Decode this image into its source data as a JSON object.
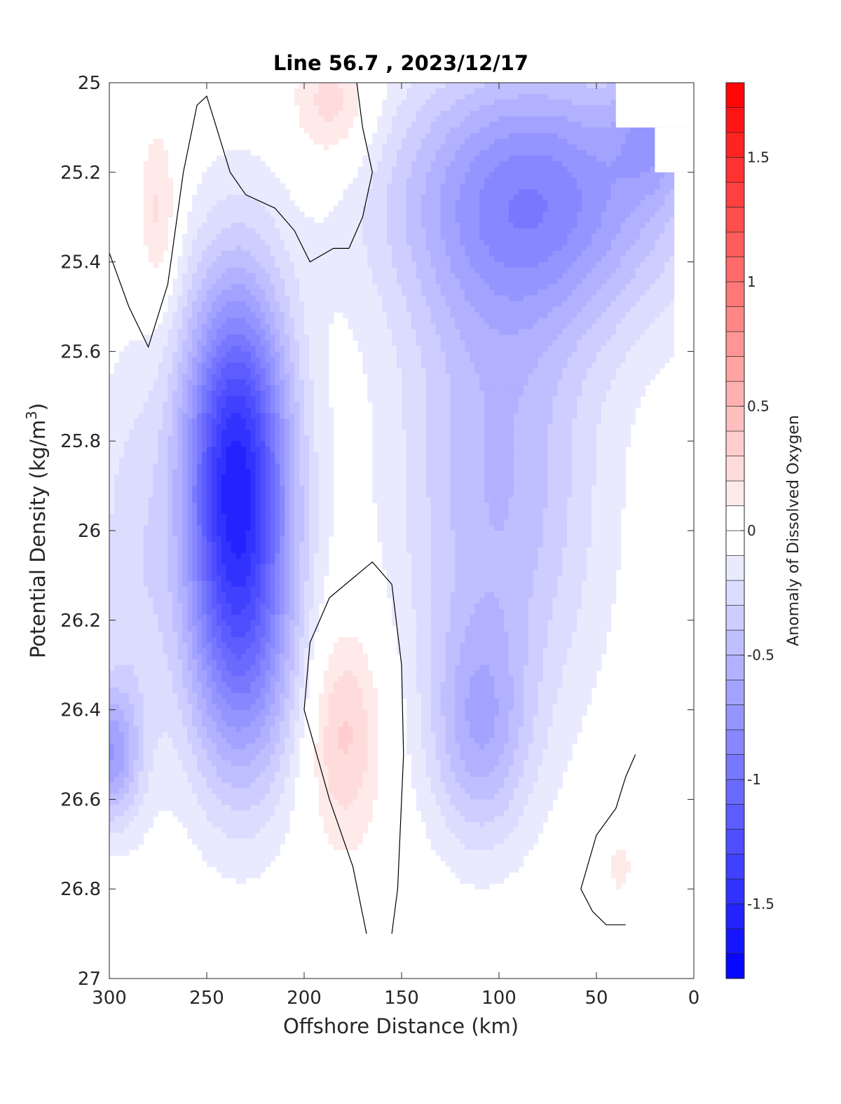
{
  "chart_data": {
    "type": "heatmap",
    "title": "Line 56.7 , 2023/12/17",
    "xlabel": "Offshore Distance (km)",
    "ylabel_main": "Potential Density (kg/m",
    "ylabel_sup": "3",
    "ylabel_close": ")",
    "xlim": [
      300,
      0
    ],
    "ylim": [
      27,
      25
    ],
    "x_ticks": [
      300,
      250,
      200,
      150,
      100,
      50,
      0
    ],
    "x_tick_labels": [
      "300",
      "250",
      "200",
      "150",
      "100",
      "50",
      "0"
    ],
    "y_ticks": [
      25,
      25.2,
      25.4,
      25.6,
      25.8,
      26,
      26.2,
      26.4,
      26.6,
      26.8,
      27
    ],
    "y_tick_labels": [
      "25",
      "25.2",
      "25.4",
      "25.6",
      "25.8",
      "26",
      "26.2",
      "26.4",
      "26.6",
      "26.8",
      "27"
    ],
    "colorbar": {
      "label": "Anomaly of Dissolved Oxygen",
      "range": [
        -1.8,
        1.8
      ],
      "step": 0.1,
      "ticks": [
        1.5,
        1,
        0.5,
        0,
        -0.5,
        -1,
        -1.5
      ],
      "tick_labels": [
        "1.5",
        "1",
        "0.5",
        "0",
        "-0.5",
        "-1",
        "-1.5"
      ],
      "color_low": "#0000ff",
      "color_mid": "#ffffff",
      "color_high": "#ff0000"
    },
    "field_features": [
      {
        "name": "deep-low-core",
        "x": 235,
        "y": 25.85,
        "sx": 28,
        "sy": 0.42,
        "amp": -1.45
      },
      {
        "name": "deep-low-shoulder",
        "x": 232,
        "y": 26.3,
        "sx": 30,
        "sy": 0.35,
        "amp": -0.6
      },
      {
        "name": "onshore-low-band",
        "x": 80,
        "y": 25.25,
        "sx": 75,
        "sy": 0.3,
        "amp": -0.8
      },
      {
        "name": "onshore-low-mid",
        "x": 100,
        "y": 25.9,
        "sx": 50,
        "sy": 0.55,
        "amp": -0.5
      },
      {
        "name": "onshore-low-shelf",
        "x": 20,
        "y": 25.1,
        "sx": 20,
        "sy": 0.15,
        "amp": -0.4
      },
      {
        "name": "secondary-low",
        "x": 110,
        "y": 26.45,
        "sx": 25,
        "sy": 0.25,
        "amp": -0.45
      },
      {
        "name": "left-edge-low",
        "x": 300,
        "y": 26.5,
        "sx": 15,
        "sy": 0.15,
        "amp": -0.6
      },
      {
        "name": "left-broad-low",
        "x": 290,
        "y": 26.1,
        "sx": 20,
        "sy": 0.5,
        "amp": -0.25
      },
      {
        "name": "pos-lower",
        "x": 180,
        "y": 26.45,
        "sx": 20,
        "sy": 0.25,
        "amp": 0.35
      },
      {
        "name": "pos-upper-center",
        "x": 185,
        "y": 25.05,
        "sx": 22,
        "sy": 0.15,
        "amp": 0.3
      },
      {
        "name": "pos-upper-left",
        "x": 275,
        "y": 25.3,
        "sx": 10,
        "sy": 0.2,
        "amp": 0.25
      },
      {
        "name": "pos-lower-right",
        "x": 38,
        "y": 26.75,
        "sx": 8,
        "sy": 0.08,
        "amp": 0.15
      }
    ],
    "no_data_regions": [
      {
        "name": "bottom-band",
        "x_from": 300,
        "x_to": 0,
        "y_from": 26.9,
        "y_to": 27
      },
      {
        "name": "bottom-step-1",
        "x_from": 270,
        "x_to": 210,
        "y_from": 26.8,
        "y_to": 26.9
      },
      {
        "name": "bottom-step-2",
        "x_from": 270,
        "x_to": 230,
        "y_from": 26.82,
        "y_to": 26.9
      },
      {
        "name": "shelf-right",
        "x_from": 10,
        "x_to": 0,
        "y_from": 25.2,
        "y_to": 26.9
      },
      {
        "name": "shelf-mid",
        "x_from": 30,
        "x_to": 0,
        "y_from": 26.5,
        "y_to": 26.9
      },
      {
        "name": "shelf-top",
        "x_from": 20,
        "x_to": 0,
        "y_from": 25.1,
        "y_to": 25.2
      },
      {
        "name": "shelf-corner",
        "x_from": 40,
        "x_to": 0,
        "y_from": 25,
        "y_to": 25.1
      }
    ],
    "zero_contours": [
      {
        "name": "zero-contour-left",
        "points": [
          [
            300,
            25.38
          ],
          [
            290,
            25.5
          ],
          [
            280,
            25.59
          ],
          [
            270,
            25.45
          ],
          [
            262,
            25.2
          ],
          [
            255,
            25.05
          ],
          [
            250,
            25.03
          ],
          [
            245,
            25.1
          ],
          [
            238,
            25.2
          ],
          [
            230,
            25.25
          ],
          [
            215,
            25.28
          ],
          [
            205,
            25.33
          ],
          [
            197,
            25.4
          ],
          [
            185,
            25.37
          ],
          [
            177,
            25.37
          ],
          [
            170,
            25.3
          ],
          [
            165,
            25.2
          ],
          [
            170,
            25.1
          ],
          [
            173,
            25
          ]
        ]
      },
      {
        "name": "zero-contour-center",
        "points": [
          [
            168,
            26.9
          ],
          [
            175,
            26.75
          ],
          [
            187,
            26.6
          ],
          [
            200,
            26.4
          ],
          [
            197,
            26.25
          ],
          [
            187,
            26.15
          ],
          [
            165,
            26.07
          ],
          [
            155,
            26.12
          ],
          [
            150,
            26.3
          ],
          [
            149,
            26.5
          ],
          [
            152,
            26.8
          ],
          [
            155,
            26.9
          ]
        ]
      },
      {
        "name": "zero-contour-right",
        "points": [
          [
            30,
            26.5
          ],
          [
            35,
            26.55
          ],
          [
            40,
            26.62
          ],
          [
            50,
            26.68
          ],
          [
            58,
            26.8
          ],
          [
            52,
            26.85
          ],
          [
            45,
            26.88
          ],
          [
            35,
            26.88
          ]
        ]
      }
    ]
  }
}
